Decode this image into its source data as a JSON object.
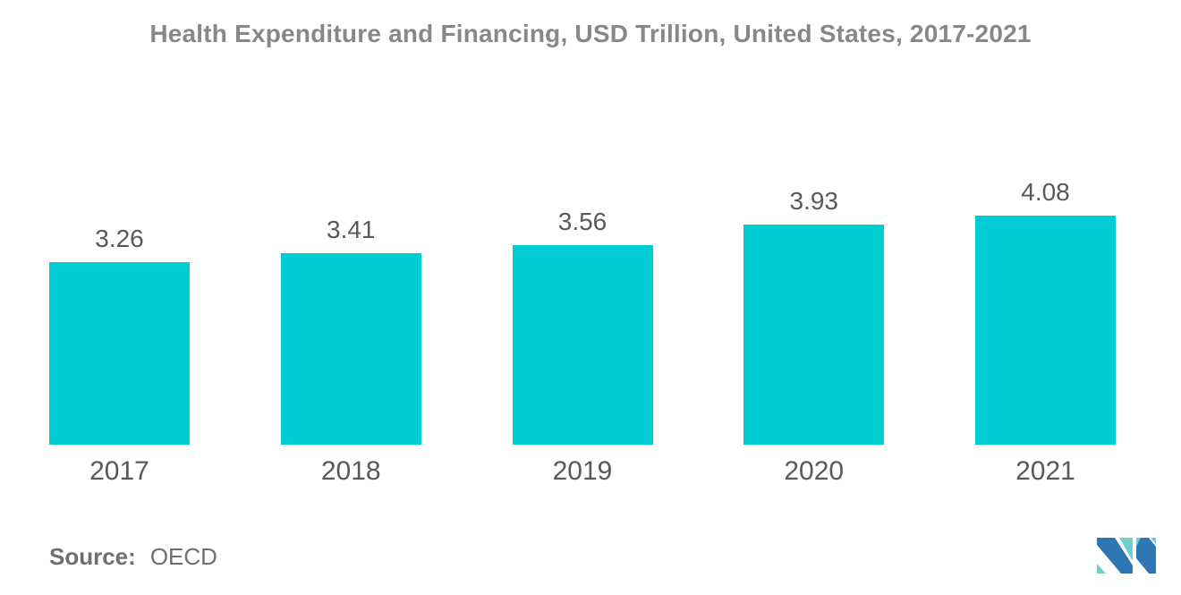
{
  "title": "Health Expenditure and Financing, USD Trillion, United States, 2017-2021",
  "chart_data": {
    "type": "bar",
    "title": "Health Expenditure and Financing, USD Trillion, United States, 2017-2021",
    "categories": [
      "2017",
      "2018",
      "2019",
      "2020",
      "2021"
    ],
    "values": [
      3.26,
      3.41,
      3.56,
      3.93,
      4.08
    ],
    "value_labels": [
      "3.26",
      "3.41",
      "3.56",
      "3.93",
      "4.08"
    ],
    "series_name": "Health Expenditure and Financing (USD Trillion)",
    "xlabel": "",
    "ylabel": "",
    "ylim": [
      0,
      4.4
    ],
    "grid": false,
    "legend_position": "none",
    "data_labels": "above-bars",
    "bar_color": "#00ccd3"
  },
  "source": {
    "label": "Source:",
    "value": "OECD"
  },
  "logo": {
    "name": "mordor-intelligence-logo",
    "blue": "#2f76b5",
    "teal": "#6fcfcd"
  },
  "colors": {
    "background": "#ffffff",
    "bar": "#00ccd3",
    "title_text": "#87888a",
    "label_text": "#58595b",
    "source_text": "#6e6f71"
  }
}
